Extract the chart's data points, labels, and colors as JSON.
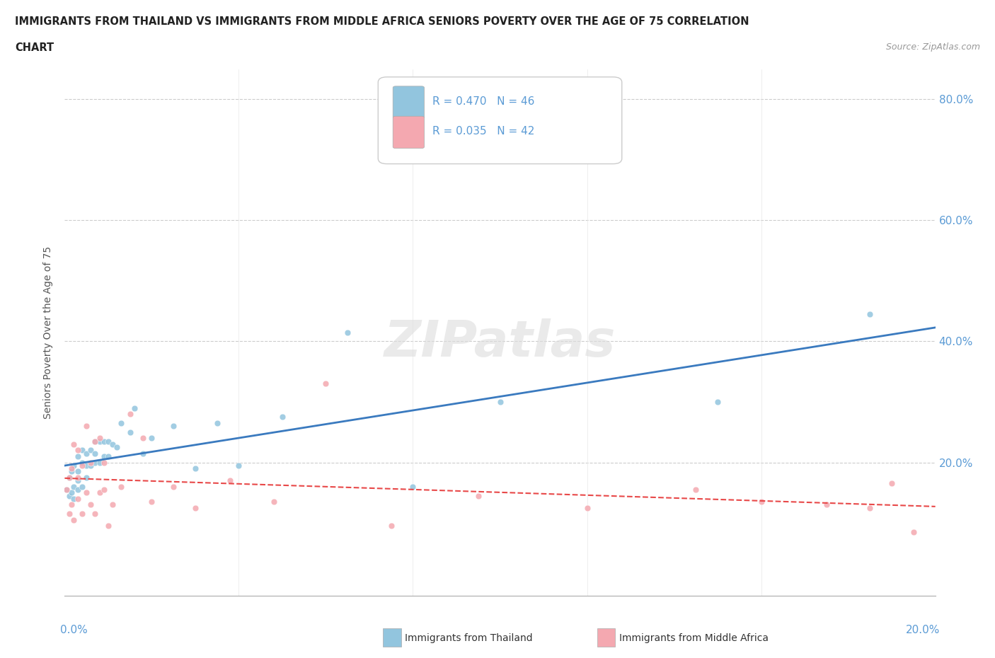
{
  "title_line1": "IMMIGRANTS FROM THAILAND VS IMMIGRANTS FROM MIDDLE AFRICA SENIORS POVERTY OVER THE AGE OF 75 CORRELATION",
  "title_line2": "CHART",
  "source_text": "Source: ZipAtlas.com",
  "ylabel": "Seniors Poverty Over the Age of 75",
  "r_thailand": 0.47,
  "n_thailand": 46,
  "r_middle_africa": 0.035,
  "n_middle_africa": 42,
  "thailand_color": "#92c5de",
  "middle_africa_color": "#f4a8b0",
  "line_thailand_color": "#3a7abf",
  "line_middle_africa_color": "#e84848",
  "watermark_text": "ZIPatlas",
  "xlim": [
    0.0,
    0.2
  ],
  "ylim": [
    -0.02,
    0.85
  ],
  "yticks": [
    0.0,
    0.2,
    0.4,
    0.6,
    0.8
  ],
  "ytick_labels": [
    "",
    "20.0%",
    "40.0%",
    "60.0%",
    "80.0%"
  ],
  "thailand_x": [
    0.0005,
    0.001,
    0.001,
    0.0015,
    0.0015,
    0.002,
    0.002,
    0.002,
    0.003,
    0.003,
    0.003,
    0.003,
    0.004,
    0.004,
    0.004,
    0.005,
    0.005,
    0.005,
    0.006,
    0.006,
    0.007,
    0.007,
    0.007,
    0.008,
    0.008,
    0.009,
    0.009,
    0.01,
    0.01,
    0.011,
    0.012,
    0.013,
    0.015,
    0.016,
    0.018,
    0.02,
    0.025,
    0.03,
    0.035,
    0.04,
    0.05,
    0.065,
    0.08,
    0.1,
    0.15,
    0.185
  ],
  "thailand_y": [
    0.155,
    0.145,
    0.175,
    0.15,
    0.185,
    0.14,
    0.16,
    0.195,
    0.155,
    0.17,
    0.185,
    0.21,
    0.16,
    0.2,
    0.22,
    0.175,
    0.195,
    0.215,
    0.195,
    0.22,
    0.2,
    0.215,
    0.235,
    0.2,
    0.235,
    0.21,
    0.235,
    0.21,
    0.235,
    0.23,
    0.225,
    0.265,
    0.25,
    0.29,
    0.215,
    0.24,
    0.26,
    0.19,
    0.265,
    0.195,
    0.275,
    0.415,
    0.16,
    0.3,
    0.3,
    0.445
  ],
  "middle_africa_x": [
    0.0005,
    0.001,
    0.001,
    0.0015,
    0.0015,
    0.002,
    0.002,
    0.003,
    0.003,
    0.003,
    0.004,
    0.004,
    0.005,
    0.005,
    0.006,
    0.006,
    0.007,
    0.007,
    0.008,
    0.008,
    0.009,
    0.009,
    0.01,
    0.011,
    0.013,
    0.015,
    0.018,
    0.02,
    0.025,
    0.03,
    0.038,
    0.048,
    0.06,
    0.075,
    0.095,
    0.12,
    0.145,
    0.16,
    0.175,
    0.185,
    0.19,
    0.195
  ],
  "middle_africa_y": [
    0.155,
    0.115,
    0.175,
    0.13,
    0.19,
    0.105,
    0.23,
    0.14,
    0.175,
    0.22,
    0.115,
    0.195,
    0.15,
    0.26,
    0.13,
    0.2,
    0.235,
    0.115,
    0.15,
    0.24,
    0.155,
    0.2,
    0.095,
    0.13,
    0.16,
    0.28,
    0.24,
    0.135,
    0.16,
    0.125,
    0.17,
    0.135,
    0.33,
    0.095,
    0.145,
    0.125,
    0.155,
    0.135,
    0.13,
    0.125,
    0.165,
    0.085
  ],
  "legend_r_label1": "R = 0.470   N = 46",
  "legend_r_label2": "R = 0.035   N = 42",
  "bottom_legend_label1": "Immigrants from Thailand",
  "bottom_legend_label2": "Immigrants from Middle Africa",
  "background_color": "#ffffff",
  "grid_color": "#cccccc",
  "title_color": "#222222",
  "axis_label_color": "#5b9bd5",
  "legend_text_color": "#5b9bd5"
}
